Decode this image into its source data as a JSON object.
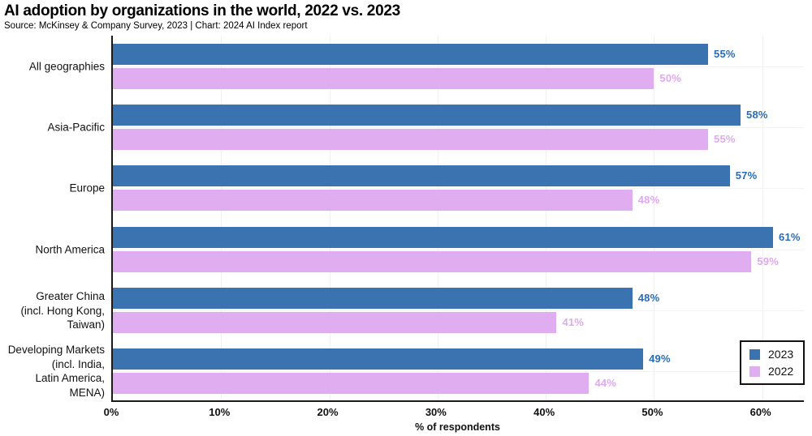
{
  "header": {
    "title": "AI adoption by organizations in the world, 2022 vs. 2023",
    "source_line": "Source: McKinsey & Company Survey, 2023 | Chart: 2024 AI Index report"
  },
  "chart_data": {
    "type": "bar",
    "orientation": "horizontal",
    "title": "AI adoption by organizations in the world, 2022 vs. 2023",
    "subtitle": "Source: McKinsey & Company Survey, 2023 | Chart: 2024 AI Index report",
    "categories": [
      "All geographies",
      "Asia-Pacific",
      "Europe",
      "North America",
      "Greater China\n(incl. Hong Kong,\nTaiwan)",
      "Developing Markets\n(incl. India,\nLatin America,\nMENA)"
    ],
    "series": [
      {
        "name": "2023",
        "color": "#3a73b0",
        "label_color": "#2a6cb6",
        "values": [
          55,
          58,
          57,
          61,
          48,
          49
        ]
      },
      {
        "name": "2022",
        "color": "#dfadf0",
        "label_color": "#dfa9ee",
        "values": [
          50,
          55,
          48,
          59,
          41,
          44
        ]
      }
    ],
    "value_suffix": "%",
    "xlabel": "% of respondents",
    "x_ticks": [
      "0%",
      "10%",
      "20%",
      "30%",
      "40%",
      "50%",
      "60%"
    ],
    "x_tick_values": [
      0,
      10,
      20,
      30,
      40,
      50,
      60
    ],
    "xlim": [
      0,
      64
    ],
    "grid": true,
    "legend_position": "bottom-right",
    "colors": {
      "axis": "#1a1a1a",
      "gridline": "#f0f0f0",
      "text": "#111111"
    }
  }
}
